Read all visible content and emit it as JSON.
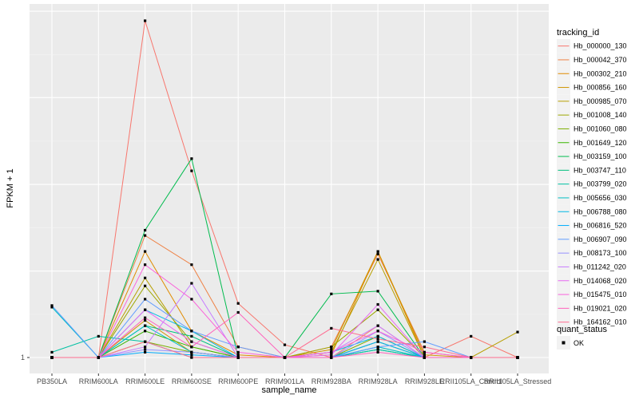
{
  "chart_data": {
    "type": "line",
    "xlabel": "sample_name",
    "ylabel": "FPKM + 1",
    "categories": [
      "PB350LA",
      "RRIM600LA",
      "RRIM600LE",
      "RRIM600SE",
      "RRIM600PE",
      "RRIM901LA",
      "RRIM928BA",
      "RRIM928LA",
      "RRIM928LE",
      "RRII105LA_Control",
      "RRII105LA_Stressed"
    ],
    "ytick_labels": [
      {
        "value": 1,
        "label": "1"
      }
    ],
    "ylim": [
      1,
      1.65
    ],
    "grid": true,
    "legend_placement": "right",
    "legend": {
      "title": "tracking_id",
      "status_title": "quant_status",
      "status_label": "OK"
    },
    "series": [
      {
        "name": "Hb_000000_130",
        "color": "#F8766D",
        "values": [
          1,
          1,
          1.635,
          1.352,
          1.102,
          1.024,
          1.0,
          1.06,
          1.0,
          1.04,
          1.0
        ]
      },
      {
        "name": "Hb_000042_370",
        "color": "#EE8043",
        "values": [
          1,
          1,
          1.23,
          1.175,
          1.02,
          1.0,
          1.02,
          1.195,
          1.01,
          1.0,
          1.0
        ]
      },
      {
        "name": "Hb_000302_210",
        "color": "#E08B00",
        "values": [
          1,
          1,
          1.2,
          1.05,
          1.005,
          1.0,
          1.005,
          1.2,
          1.0,
          1.0,
          1.0
        ]
      },
      {
        "name": "Hb_000856_160",
        "color": "#CF9400",
        "values": [
          1,
          1,
          1.07,
          1.01,
          1.0,
          1.0,
          1.015,
          1.2,
          1.005,
          1.0,
          1.0
        ]
      },
      {
        "name": "Hb_000985_070",
        "color": "#B79F00",
        "values": [
          1,
          1,
          1.15,
          1.02,
          1.0,
          1.0,
          1.01,
          1.185,
          1.0,
          1.0,
          1.048
        ]
      },
      {
        "name": "Hb_001008_140",
        "color": "#9DA700",
        "values": [
          1,
          1,
          1.135,
          1.03,
          1.0,
          1.0,
          1.02,
          1.09,
          1.0,
          1.0,
          1.0
        ]
      },
      {
        "name": "Hb_001060_080",
        "color": "#7CAE00",
        "values": [
          1,
          1,
          1.03,
          1.01,
          1.0,
          1.0,
          1.0,
          1.04,
          1.0,
          1.0,
          1.0
        ]
      },
      {
        "name": "Hb_001649_120",
        "color": "#39B600",
        "values": [
          1,
          1,
          1.05,
          1.02,
          1.0,
          1.0,
          1.0,
          1.03,
          1.0,
          1.0,
          1.0
        ]
      },
      {
        "name": "Hb_003159_100",
        "color": "#00BB4E",
        "values": [
          1,
          1,
          1.24,
          1.375,
          1.0,
          1.0,
          1.12,
          1.125,
          1.0,
          1.0,
          1.0
        ]
      },
      {
        "name": "Hb_003747_110",
        "color": "#00BF7D",
        "values": [
          1,
          1,
          1.06,
          1.04,
          1.0,
          1.0,
          1.0,
          1.015,
          1.0,
          1.0,
          1.0
        ]
      },
      {
        "name": "Hb_003799_020",
        "color": "#00C1A3",
        "values": [
          1.01,
          1.04,
          1.03,
          1.0,
          1.0,
          1.0,
          1.0,
          1.015,
          1.0,
          1.0,
          1.0
        ]
      },
      {
        "name": "Hb_005656_030",
        "color": "#00BFC4",
        "values": [
          1.095,
          1.0,
          1.06,
          1.01,
          1.0,
          1.0,
          1.0,
          1.02,
          1.0,
          1.0,
          1.0
        ]
      },
      {
        "name": "Hb_006788_080",
        "color": "#00B8E5",
        "values": [
          1,
          1,
          1.09,
          1.05,
          1.0,
          1.0,
          1.01,
          1.04,
          1.0,
          1.0,
          1.0
        ]
      },
      {
        "name": "Hb_006816_520",
        "color": "#00ACFC",
        "values": [
          1,
          1,
          1.01,
          1.005,
          1.0,
          1.0,
          1.0,
          1.03,
          1.0,
          1.0,
          1.0
        ]
      },
      {
        "name": "Hb_006907_090",
        "color": "#619CFF",
        "values": [
          1.098,
          1.0,
          1.11,
          1.05,
          1.02,
          1.0,
          1.0,
          1.02,
          1.03,
          1.0,
          1.0
        ]
      },
      {
        "name": "Hb_008173_100",
        "color": "#9590FF",
        "values": [
          1,
          1,
          1.015,
          1.01,
          1.0,
          1.0,
          1.0,
          1.05,
          1.0,
          1.0,
          1.0
        ]
      },
      {
        "name": "Hb_011242_020",
        "color": "#C77CFF",
        "values": [
          1,
          1,
          1.02,
          1.14,
          1.0,
          1.0,
          1.01,
          1.06,
          1.0,
          1.0,
          1.0
        ]
      },
      {
        "name": "Hb_014068_020",
        "color": "#E76BF3",
        "values": [
          1,
          1,
          1.09,
          1.03,
          1.0,
          1.0,
          1.005,
          1.1,
          1.0,
          1.0,
          1.0
        ]
      },
      {
        "name": "Hb_015475_010",
        "color": "#FA62DB",
        "values": [
          1,
          1,
          1.175,
          1.11,
          1.01,
          1.0,
          1.01,
          1.05,
          1.01,
          1.0,
          1.0
        ]
      },
      {
        "name": "Hb_019021_020",
        "color": "#FF62BC",
        "values": [
          1,
          1,
          1.075,
          1.02,
          1.085,
          1.0,
          1.0,
          1.01,
          1.0,
          1.0,
          1.0
        ]
      },
      {
        "name": "Hb_164162_010",
        "color": "#FF6C91",
        "values": [
          1,
          1,
          1.03,
          1.0,
          1.0,
          1.0,
          1.055,
          1.035,
          1.02,
          1.0,
          1.0
        ]
      }
    ]
  }
}
